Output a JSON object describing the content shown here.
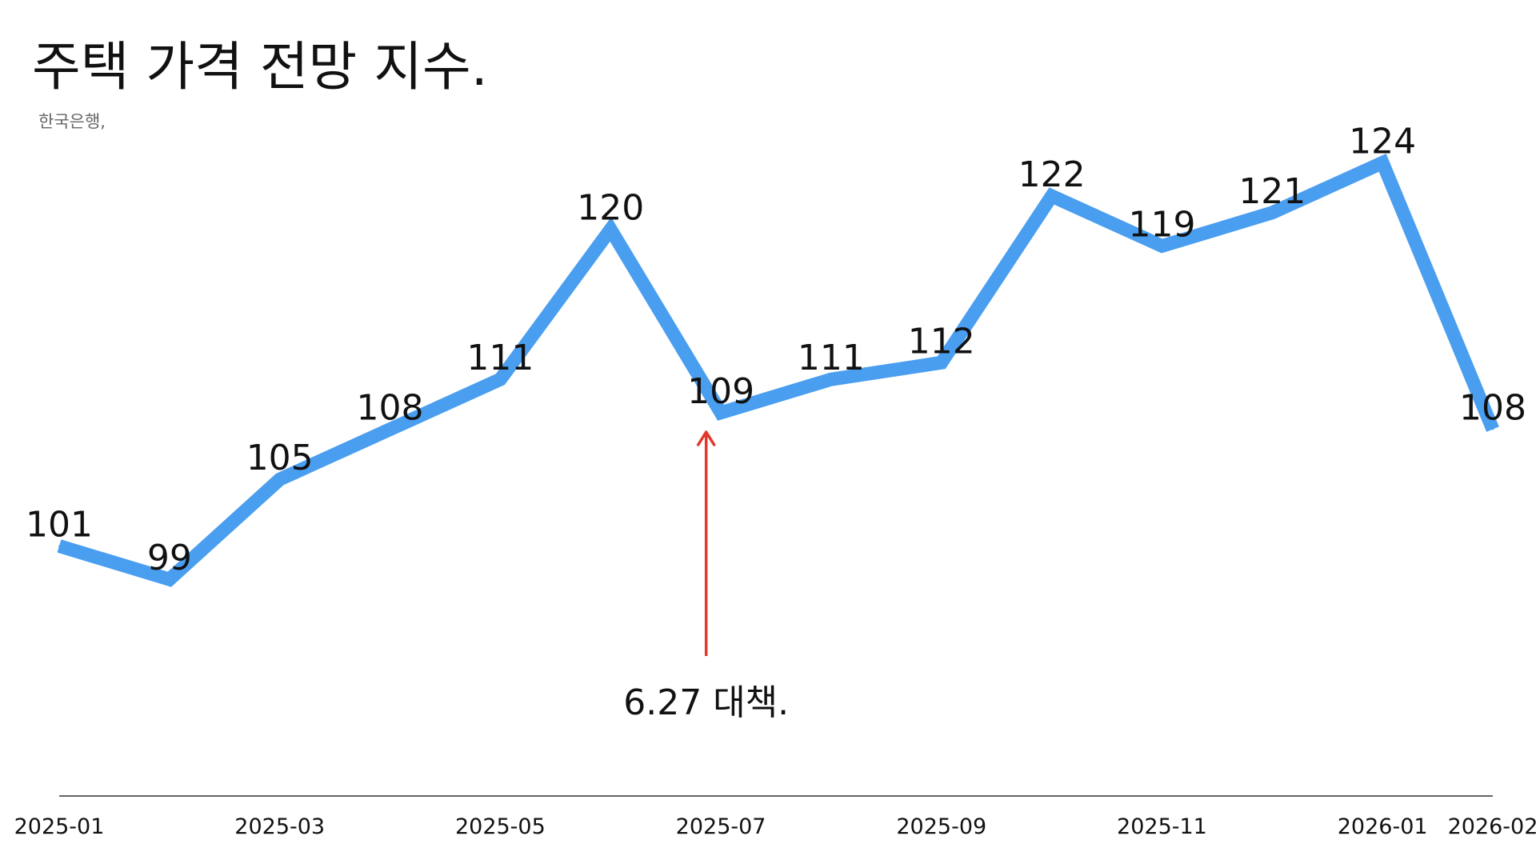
{
  "chart_data": {
    "type": "line",
    "title": "주택 가격 전망 지수.",
    "subtitle": "한국은행,",
    "x": [
      "2025-01",
      "2025-02",
      "2025-03",
      "2025-04",
      "2025-05",
      "2025-06",
      "2025-07",
      "2025-08",
      "2025-09",
      "2025-10",
      "2025-11",
      "2025-12",
      "2026-01",
      "2026-02"
    ],
    "x_tick_labels": [
      "2025-01",
      "2025-03",
      "2025-05",
      "2025-07",
      "2025-09",
      "2025-11",
      "2026-01",
      "2026-02"
    ],
    "series": [
      {
        "values": [
          101,
          99,
          105,
          108,
          111,
          120,
          109,
          111,
          112,
          122,
          119,
          121,
          124,
          108
        ],
        "color": "#4a9ef0"
      }
    ],
    "data_labels": [
      "101",
      "99",
      "105",
      "108",
      "111",
      "120",
      "109",
      "111",
      "112",
      "122",
      "119",
      "121",
      "124",
      "108"
    ],
    "annotation": {
      "text": "6.27 대책.",
      "x": "2025-06-27",
      "color": "#e0392b"
    },
    "ylim": [
      92,
      128
    ],
    "xlabel": "",
    "ylabel": "",
    "grid": false,
    "legend": "none"
  }
}
